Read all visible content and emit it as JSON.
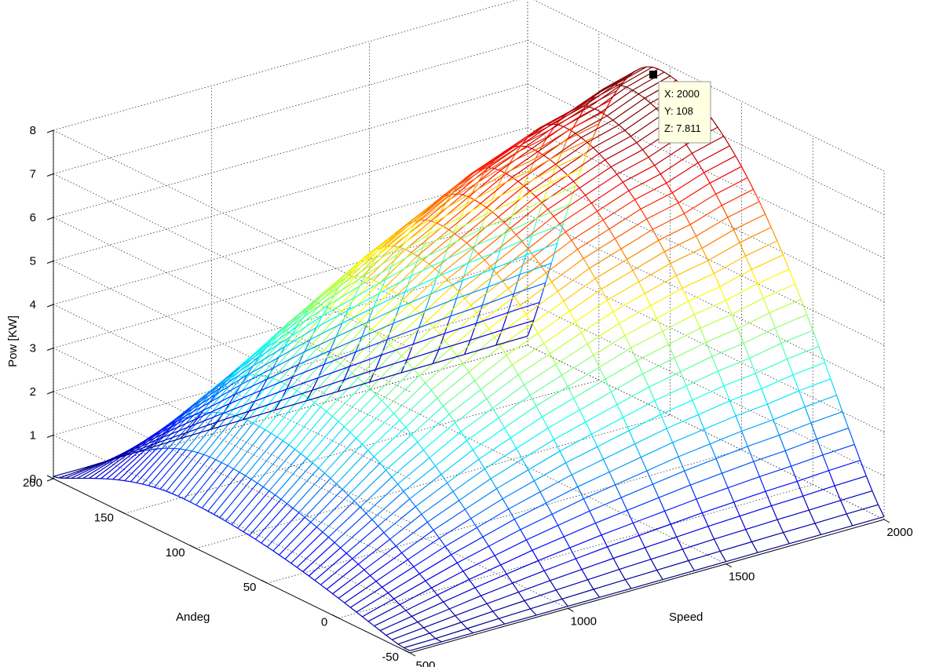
{
  "chart_data": {
    "type": "surface",
    "title": "",
    "xlabel": "Speed",
    "ylabel": "Andeg",
    "zlabel": "Pow [KW]",
    "x_ticks": [
      "500",
      "1000",
      "1500",
      "2000"
    ],
    "y_ticks": [
      "-50",
      "0",
      "50",
      "100",
      "150",
      "200"
    ],
    "z_ticks": [
      "0",
      "1",
      "2",
      "3",
      "4",
      "5",
      "6",
      "7",
      "8"
    ],
    "xlim": [
      500,
      2000
    ],
    "ylim": [
      -50,
      200
    ],
    "zlim": [
      0,
      8
    ],
    "grid": true,
    "colormap": "jet",
    "speed_samples": [
      500,
      600,
      700,
      800,
      900,
      1000,
      1100,
      1200,
      1300,
      1400,
      1500,
      1600,
      1700,
      1800,
      1900,
      2000
    ],
    "peak_power_by_speed": [
      1.0,
      1.7,
      2.4,
      3.1,
      3.7,
      4.3,
      4.8,
      5.3,
      5.7,
      6.1,
      6.5,
      6.8,
      7.1,
      7.3,
      7.6,
      7.811
    ],
    "datatip": {
      "x": 2000,
      "y": 108,
      "z": 7.811,
      "x_text": "X: 2000",
      "y_text": "Y: 108",
      "z_text": "Z: 7.811"
    }
  }
}
